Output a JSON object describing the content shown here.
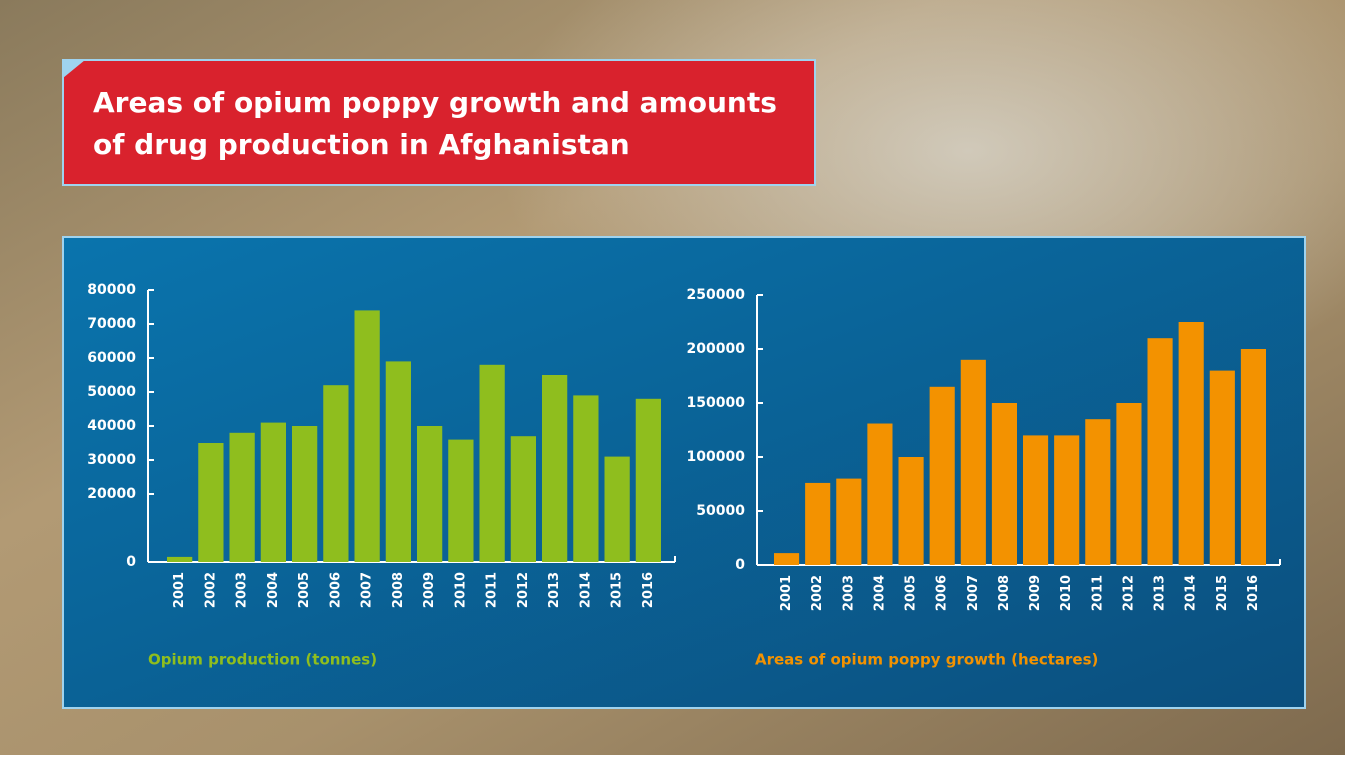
{
  "title": "Areas of opium poppy growth and amounts of drug production in Afghanistan",
  "chart_data": [
    {
      "type": "bar",
      "categories": [
        "2001",
        "2002",
        "2003",
        "2004",
        "2005",
        "2006",
        "2007",
        "2008",
        "2009",
        "2010",
        "2011",
        "2012",
        "2013",
        "2014",
        "2015",
        "2016"
      ],
      "series": [
        {
          "name": "Opium production (tonnes)",
          "color": "#8fbe1e",
          "values": [
            1500,
            35000,
            38000,
            41000,
            40000,
            52000,
            74000,
            59000,
            40000,
            36000,
            58000,
            37000,
            55000,
            49000,
            31000,
            48000
          ]
        }
      ],
      "ylim": [
        0,
        80000
      ],
      "yticks": [
        0,
        20000,
        30000,
        40000,
        50000,
        60000,
        70000,
        80000
      ]
    },
    {
      "type": "bar",
      "categories": [
        "2001",
        "2002",
        "2003",
        "2004",
        "2005",
        "2006",
        "2007",
        "2008",
        "2009",
        "2010",
        "2011",
        "2012",
        "2013",
        "2014",
        "2015",
        "2016"
      ],
      "series": [
        {
          "name": "Areas of opium poppy growth (hectares)",
          "color": "#f39200",
          "values": [
            11000,
            76000,
            80000,
            131000,
            100000,
            165000,
            190000,
            150000,
            120000,
            120000,
            135000,
            150000,
            210000,
            225000,
            180000,
            200000
          ]
        }
      ],
      "ylim": [
        0,
        250000
      ],
      "yticks": [
        0,
        50000,
        100000,
        150000,
        200000,
        250000
      ]
    }
  ]
}
